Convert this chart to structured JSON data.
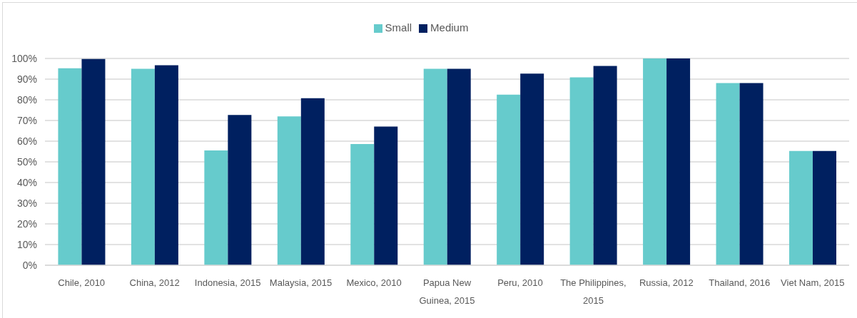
{
  "chart_data": {
    "type": "bar",
    "categories": [
      "Chile, 2010",
      "China, 2012",
      "Indonesia, 2015",
      "Malaysia, 2015",
      "Mexico, 2010",
      "Papua New Guinea, 2015",
      "Peru, 2010",
      "The Philippines, 2015",
      "Russia, 2012",
      "Thailand, 2016",
      "Viet Nam, 2015"
    ],
    "series": [
      {
        "name": "Small",
        "color": "#66cbcc",
        "values": [
          95.3,
          95,
          55.5,
          72,
          58.6,
          95,
          82.5,
          90.9,
          100,
          88.1,
          55.3
        ]
      },
      {
        "name": "Medium",
        "color": "#002060",
        "values": [
          99.7,
          96.7,
          72.7,
          80.8,
          67.1,
          95,
          92.7,
          96.4,
          100,
          88.1,
          55.3
        ]
      }
    ],
    "ylim": [
      0,
      100
    ],
    "yticks": [
      {
        "value": 0,
        "label": "0%"
      },
      {
        "value": 10,
        "label": "10%"
      },
      {
        "value": 20,
        "label": "20%"
      },
      {
        "value": 30,
        "label": "30%"
      },
      {
        "value": 40,
        "label": "40%"
      },
      {
        "value": 50,
        "label": "50%"
      },
      {
        "value": 60,
        "label": "60%"
      },
      {
        "value": 70,
        "label": "70%"
      },
      {
        "value": 80,
        "label": "80%"
      },
      {
        "value": 90,
        "label": "90%"
      },
      {
        "value": 100,
        "label": "100%"
      }
    ],
    "grid": "y",
    "legend": "top"
  }
}
